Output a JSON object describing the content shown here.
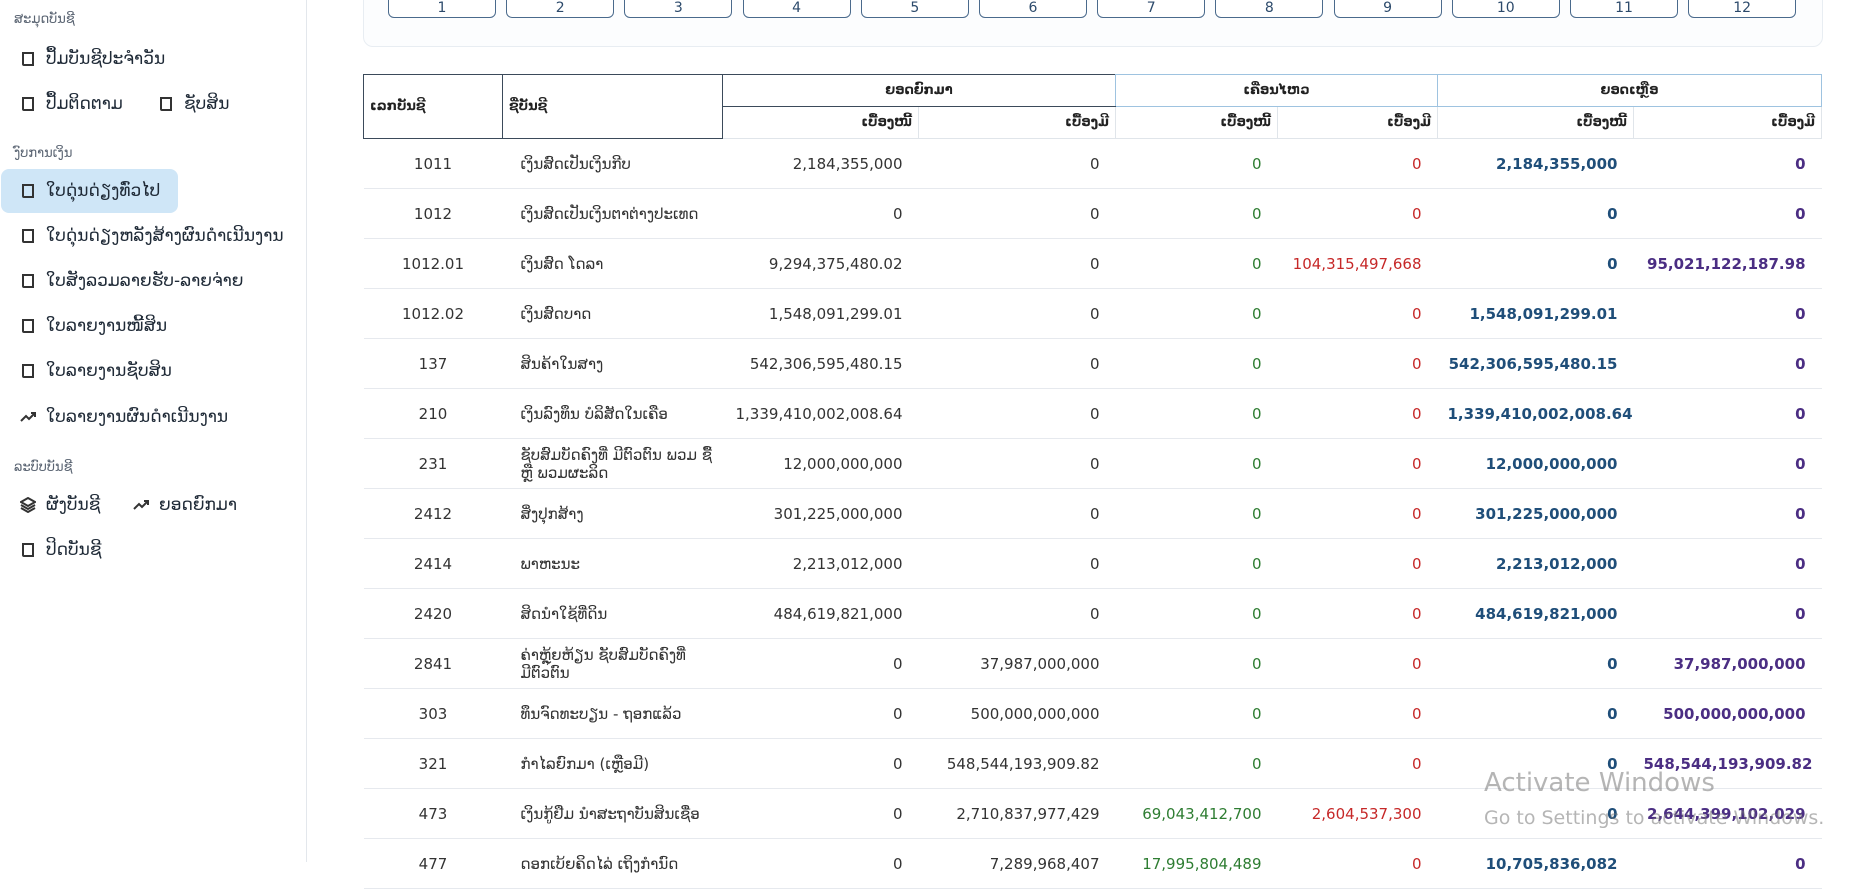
{
  "sidebar": {
    "groups": [
      {
        "title": "ສະມຸດບັນຊີ",
        "items": [
          "ປຶ້ມບັນຊີປະຈຳວັນ",
          "ປຶ້ມຕິດຕາມ",
          "ຊັບສິນ"
        ]
      },
      {
        "title": "ງົບການເງິນ",
        "items": [
          "ໃບດຸ່ນດ່ຽງທົ່ວໄປ",
          "ໃບດຸ່ນດ່ຽງຫລັງສ້າງຜົນດຳເນີນງານ",
          "ໃບສັງລວມລາຍຮັບ-ລາຍຈ່າຍ",
          "ໃບລາຍງານໜີ້ສິນ",
          "ໃບລາຍງານຊັບສິນ",
          "ໃບລາຍງານຜົນດຳເນີນງານ"
        ]
      },
      {
        "title": "ລະບົບບັນຊີ",
        "items": [
          "ຜັງບັນຊີ",
          "ຍອດຍົກມາ",
          "ປິດບັນຊີ"
        ]
      }
    ]
  },
  "months": [
    "1",
    "2",
    "3",
    "4",
    "5",
    "6",
    "7",
    "8",
    "9",
    "10",
    "11",
    "12"
  ],
  "table": {
    "headers": [
      "ເລກບັນຊີ",
      "ຊື່ບັນຊີ",
      "ຍອດຍົກມາ",
      "ເຄື່ອນໄຫວ",
      "ຍອດເຫຼືອ"
    ],
    "subheaders": [
      "ເບື້ອງໜີ້",
      "ເບື້ອງມີ",
      "ເບື້ອງໜີ້",
      "ເບື້ອງມີ",
      "ເບື້ອງໜີ້",
      "ເບື້ອງມີ"
    ],
    "rows": [
      [
        "1011",
        "ເງິນສົດເປັນເງິນກີບ",
        "2,184,355,000",
        "0",
        "0",
        "0",
        "2,184,355,000",
        "0"
      ],
      [
        "1012",
        "ເງິນສົດເປັນເງິນຕາຕ່າງປະເທດ",
        "0",
        "0",
        "0",
        "0",
        "0",
        "0"
      ],
      [
        "1012.01",
        "ເງິນສົດ ໂດລາ",
        "9,294,375,480.02",
        "0",
        "0",
        "104,315,497,668",
        "0",
        "95,021,122,187.98"
      ],
      [
        "1012.02",
        "ເງິນສົດບາດ",
        "1,548,091,299.01",
        "0",
        "0",
        "0",
        "1,548,091,299.01",
        "0"
      ],
      [
        "137",
        "ສິນຄ້າໃນສາງ",
        "542,306,595,480.15",
        "0",
        "0",
        "0",
        "542,306,595,480.15",
        "0"
      ],
      [
        "210",
        "ເງິນລົງທຶນ ບໍລິສັດໃນເຄືອ",
        "1,339,410,002,008.64",
        "0",
        "0",
        "0",
        "1,339,410,002,008.64",
        "0"
      ],
      [
        "231",
        "ຊັບສົມບັດຄົງທີ່ ມີຕົວຕົນ ພວມ ຊື້ ຫຼື ພວມຜະລິດ",
        "12,000,000,000",
        "0",
        "0",
        "0",
        "12,000,000,000",
        "0"
      ],
      [
        "2412",
        "ສິ່ງປຸກສ້າງ",
        "301,225,000,000",
        "0",
        "0",
        "0",
        "301,225,000,000",
        "0"
      ],
      [
        "2414",
        "ພາຫະນະ",
        "2,213,012,000",
        "0",
        "0",
        "0",
        "2,213,012,000",
        "0"
      ],
      [
        "2420",
        "ສິດນຳໃຊ້ທີ່ດິນ",
        "484,619,821,000",
        "0",
        "0",
        "0",
        "484,619,821,000",
        "0"
      ],
      [
        "2841",
        "ຄ່າຫຼຸ້ຍຫ້ຽນ ຊັບສົມບັດຄົງທີ່ ມີຕົວຕົນ",
        "0",
        "37,987,000,000",
        "0",
        "0",
        "0",
        "37,987,000,000"
      ],
      [
        "303",
        "ທຶນຈົດທະບຽນ - ຖອກແລ້ວ",
        "0",
        "500,000,000,000",
        "0",
        "0",
        "0",
        "500,000,000,000"
      ],
      [
        "321",
        "ກຳໄລຍົກມາ (ເຫຼືອມີ)",
        "0",
        "548,544,193,909.82",
        "0",
        "0",
        "0",
        "548,544,193,909.82"
      ],
      [
        "473",
        "ເງິນກູ້ຢືມ ນຳສະຖາບັນສິນເຊື່ອ",
        "0",
        "2,710,837,977,429",
        "69,043,412,700",
        "2,604,537,300",
        "0",
        "2,644,399,102,029"
      ],
      [
        "477",
        "ດອກເບ້ຍຄິດໄລ່ ເຖິງກຳນົດ",
        "0",
        "7,289,968,407",
        "17,995,804,489",
        "0",
        "10,705,836,082",
        "0"
      ]
    ]
  },
  "watermark": {
    "title": "Activate Windows",
    "subtitle": "Go to Settings to activate Windows."
  }
}
